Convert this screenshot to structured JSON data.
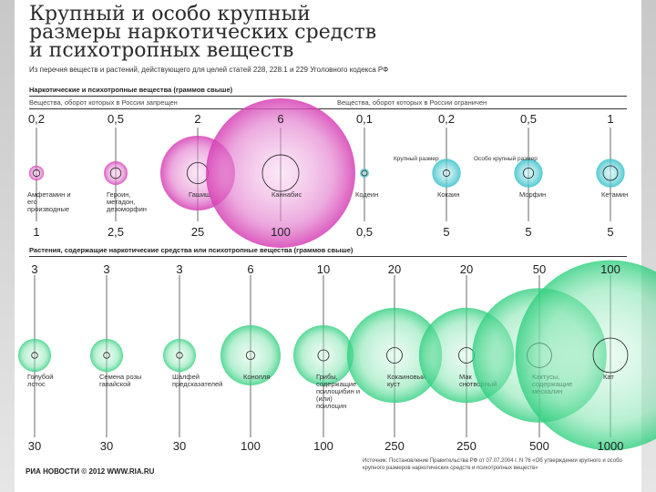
{
  "header": {
    "title_lines": [
      "Крупный и особо крупный",
      "размеры наркотических средств",
      "и психотропных веществ"
    ],
    "subtitle": "Из перечня веществ и растений, действующего для целей статей 228, 228.1 и 229 Уголовного кодекса РФ"
  },
  "section1": {
    "heading": "Наркотические и психотропные вещества (граммов свыше)",
    "left_sub": "Вещества, оборот которых в России запрещен",
    "right_sub": "Вещества, оборот которых в России ограничен"
  },
  "section2": {
    "heading": "Растения, содержащие наркотические средства или психотропные вещества (граммов свыше)"
  },
  "legend": {
    "large": "Крупный размер",
    "extra_large": "Особо крупный размер"
  },
  "chart_data": [
    {
      "type": "bubble",
      "title": "Наркотические и психотропные вещества (граммов свыше)",
      "series": [
        {
          "name": "Крупный размер",
          "color": "#ffffff"
        },
        {
          "name": "Особо крупный размер",
          "color": "#d63fb4"
        }
      ],
      "items": [
        {
          "name": "Амфетамин и его производные",
          "large": "0,2",
          "extra": "1",
          "group": "forbidden"
        },
        {
          "name": "Героин, метадон, дезоморфин",
          "large": "0,5",
          "extra": "2,5",
          "group": "forbidden"
        },
        {
          "name": "Гашиш",
          "large": "2",
          "extra": "25",
          "group": "forbidden"
        },
        {
          "name": "Каннабис",
          "large": "6",
          "extra": "100",
          "group": "forbidden"
        },
        {
          "name": "Кодеин",
          "large": "0,1",
          "extra": "0,5",
          "group": "restricted"
        },
        {
          "name": "Кокаин",
          "large": "0,2",
          "extra": "5",
          "group": "restricted"
        },
        {
          "name": "Морфин",
          "large": "0,5",
          "extra": "5",
          "group": "restricted"
        },
        {
          "name": "Кетамин",
          "large": "1",
          "extra": "5",
          "group": "restricted"
        }
      ]
    },
    {
      "type": "bubble",
      "title": "Растения, содержащие наркотические средства или психотропные вещества (граммов свыше)",
      "items": [
        {
          "name": "Голубой лотос",
          "large": "3",
          "extra": "30"
        },
        {
          "name": "Семена розы гавайской",
          "large": "3",
          "extra": "30"
        },
        {
          "name": "Шалфей предсказателей",
          "large": "3",
          "extra": "30"
        },
        {
          "name": "Конопля",
          "large": "6",
          "extra": "100"
        },
        {
          "name": "Грибы, содержащие псилоцибин и (или) псилоцин",
          "large": "10",
          "extra": "100"
        },
        {
          "name": "Кокаиновый куст",
          "large": "20",
          "extra": "250"
        },
        {
          "name": "Мак снотворный",
          "large": "20",
          "extra": "250"
        },
        {
          "name": "Кактусы, содержащие мескалин",
          "large": "50",
          "extra": "500"
        },
        {
          "name": "Кат",
          "large": "100",
          "extra": "1000"
        }
      ]
    }
  ],
  "footer": {
    "source": "Источник: Постановление Правительства РФ от 07.07.2004 г. N 76 «Об утверждении крупного и особо крупного размеров наркотических средств и психотропных веществ»",
    "logo": "РИА НОВОСТИ © 2012 WWW.RIA.RU"
  },
  "colors": {
    "magenta": "#d63fb4",
    "teal": "#35c1c9",
    "green": "#2fcf7e"
  }
}
